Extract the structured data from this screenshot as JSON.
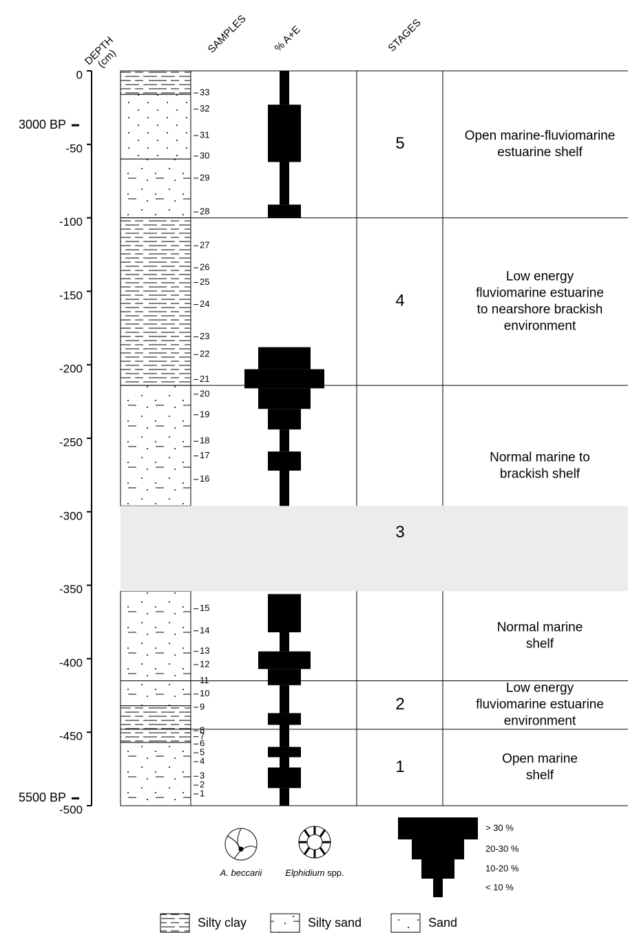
{
  "headers": {
    "depth": [
      "DEPTH",
      "(cm)"
    ],
    "samples": "SAMPLES",
    "abundance": "% A+E",
    "stages": "STAGES"
  },
  "depth_axis": {
    "ylim": [
      0,
      -500
    ],
    "yticks": [
      0,
      -50,
      -100,
      -150,
      -200,
      -250,
      -300,
      -350,
      -400,
      -450,
      -500
    ],
    "ages": [
      {
        "label": "3000 BP",
        "depth": -37
      },
      {
        "label": "5500 BP",
        "depth": -495
      }
    ]
  },
  "samples": [
    {
      "label": "33",
      "depth": -15
    },
    {
      "label": "32",
      "depth": -26
    },
    {
      "label": "31",
      "depth": -44
    },
    {
      "label": "30",
      "depth": -58
    },
    {
      "label": "29",
      "depth": -73
    },
    {
      "label": "28",
      "depth": -96
    },
    {
      "label": "27",
      "depth": -119
    },
    {
      "label": "26",
      "depth": -134
    },
    {
      "label": "25",
      "depth": -144
    },
    {
      "label": "24",
      "depth": -159
    },
    {
      "label": "23",
      "depth": -181
    },
    {
      "label": "22",
      "depth": -193
    },
    {
      "label": "21",
      "depth": -210
    },
    {
      "label": "20",
      "depth": -220
    },
    {
      "label": "19",
      "depth": -234
    },
    {
      "label": "18",
      "depth": -252
    },
    {
      "label": "17",
      "depth": -262
    },
    {
      "label": "16",
      "depth": -278
    },
    {
      "label": "15",
      "depth": -366
    },
    {
      "label": "14",
      "depth": -381
    },
    {
      "label": "13",
      "depth": -395
    },
    {
      "label": "12",
      "depth": -404
    },
    {
      "label": "11",
      "depth": -415
    },
    {
      "label": "10",
      "depth": -424
    },
    {
      "label": "9",
      "depth": -433
    },
    {
      "label": "8",
      "depth": -449
    },
    {
      "label": "7",
      "depth": -453
    },
    {
      "label": "6",
      "depth": -458
    },
    {
      "label": "5",
      "depth": -464
    },
    {
      "label": "4",
      "depth": -470
    },
    {
      "label": "3",
      "depth": -480
    },
    {
      "label": "2",
      "depth": -486
    },
    {
      "label": "1",
      "depth": -492
    }
  ],
  "lithology": [
    {
      "type": "Silty clay",
      "top": 0,
      "bottom": -16
    },
    {
      "type": "Sand",
      "top": -16,
      "bottom": -60
    },
    {
      "type": "Silty sand",
      "top": -60,
      "bottom": -100
    },
    {
      "type": "Silty clay",
      "top": -100,
      "bottom": -214
    },
    {
      "type": "Silty sand",
      "top": -214,
      "bottom": -296
    },
    {
      "type": "Silty sand",
      "top": -354,
      "bottom": -432
    },
    {
      "type": "Silty clay",
      "top": -432,
      "bottom": -457
    },
    {
      "type": "Silty sand",
      "top": -457,
      "bottom": -500
    }
  ],
  "gap": {
    "top": -296,
    "bottom": -354
  },
  "abundance": [
    {
      "class": "< 10 %",
      "top": 0,
      "bottom": -23
    },
    {
      "class": "10-20 %",
      "top": -23,
      "bottom": -62
    },
    {
      "class": "< 10 %",
      "top": -62,
      "bottom": -91
    },
    {
      "class": "10-20 %",
      "top": -91,
      "bottom": -100
    },
    {
      "class": "20-30 %",
      "top": -188,
      "bottom": -203
    },
    {
      "class": "> 30 %",
      "top": -203,
      "bottom": -216
    },
    {
      "class": "20-30 %",
      "top": -216,
      "bottom": -230
    },
    {
      "class": "10-20 %",
      "top": -230,
      "bottom": -244
    },
    {
      "class": "< 10 %",
      "top": -244,
      "bottom": -259
    },
    {
      "class": "10-20 %",
      "top": -259,
      "bottom": -272
    },
    {
      "class": "< 10 %",
      "top": -272,
      "bottom": -296
    },
    {
      "class": "10-20 %",
      "top": -356,
      "bottom": -382
    },
    {
      "class": "< 10 %",
      "top": -382,
      "bottom": -395
    },
    {
      "class": "20-30 %",
      "top": -395,
      "bottom": -407
    },
    {
      "class": "10-20 %",
      "top": -407,
      "bottom": -418
    },
    {
      "class": "< 10 %",
      "top": -418,
      "bottom": -437
    },
    {
      "class": "10-20 %",
      "top": -437,
      "bottom": -445
    },
    {
      "class": "< 10 %",
      "top": -445,
      "bottom": -460
    },
    {
      "class": "10-20 %",
      "top": -460,
      "bottom": -467
    },
    {
      "class": "< 10 %",
      "top": -467,
      "bottom": -474
    },
    {
      "class": "10-20 %",
      "top": -474,
      "bottom": -488
    },
    {
      "class": "< 10 %",
      "top": -488,
      "bottom": -500
    }
  ],
  "stages": [
    {
      "label": "5",
      "top": 0,
      "bottom": -100
    },
    {
      "label": "4",
      "top": -100,
      "bottom": -214
    },
    {
      "label": "3",
      "top": -214,
      "bottom": -415
    },
    {
      "label": "2",
      "top": -415,
      "bottom": -448
    },
    {
      "label": "1",
      "top": -448,
      "bottom": -500
    }
  ],
  "environments": [
    {
      "lines": [
        "Open marine-fluviomarine",
        "estuarine shelf"
      ],
      "top": 0,
      "bottom": -100
    },
    {
      "lines": [
        "Low energy",
        "fluviomarine estuarine",
        "to nearshore brackish",
        "environment"
      ],
      "top": -100,
      "bottom": -214
    },
    {
      "lines": [
        "Normal marine to",
        "brackish shelf"
      ],
      "top": -228,
      "bottom": -310
    },
    {
      "lines": [
        "Normal marine",
        "shelf"
      ],
      "top": -354,
      "bottom": -415
    },
    {
      "lines": [
        "Low energy",
        "fluviomarine estuarine",
        "environment"
      ],
      "top": -415,
      "bottom": -448
    },
    {
      "lines": [
        "Open marine",
        "shelf"
      ],
      "top": -448,
      "bottom": -500
    }
  ],
  "legend": {
    "species": [
      {
        "genus": "A. beccarii",
        "suffix": ""
      },
      {
        "genus": "Elphidium",
        "suffix": " spp."
      }
    ],
    "abundance_classes": [
      "> 30 %",
      "20-30 %",
      "10-20 %",
      "< 10 %"
    ],
    "lithology": [
      "Silty clay",
      "Silty sand",
      "Sand"
    ]
  }
}
